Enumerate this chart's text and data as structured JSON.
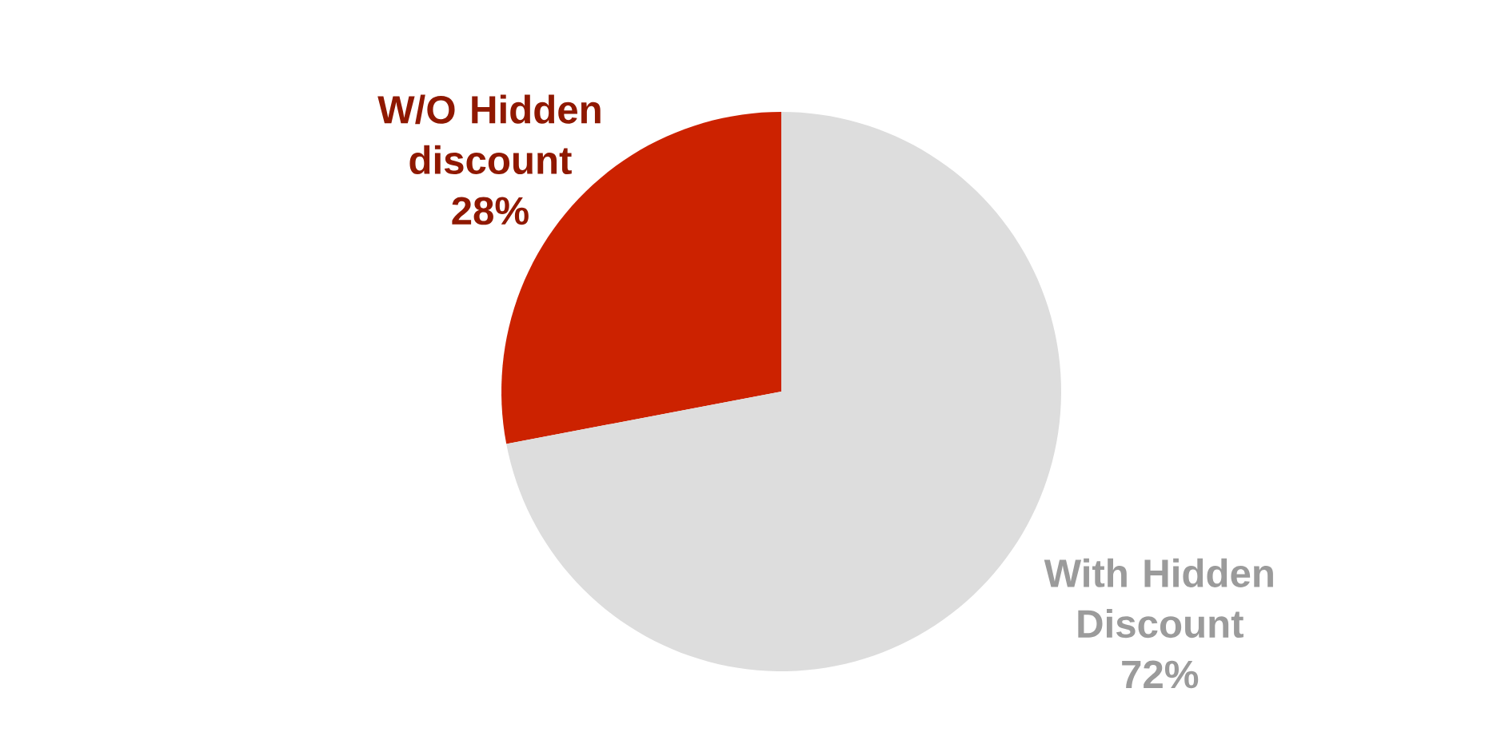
{
  "chart_data": {
    "type": "pie",
    "categories": [
      "W/O Hidden discount",
      "With Hidden Discount"
    ],
    "values": [
      28,
      72
    ],
    "colors": [
      "#cc2200",
      "#dddddd"
    ],
    "value_labels": [
      "28%",
      "72%"
    ],
    "legend": false
  }
}
